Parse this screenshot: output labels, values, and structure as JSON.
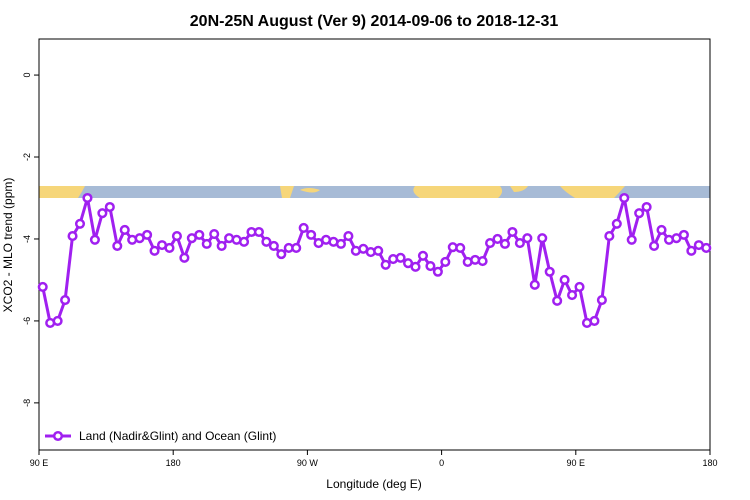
{
  "chart_data": {
    "type": "line",
    "title": "20N-25N August (Ver 9)   2014-09-06 to 2018-12-31",
    "xlabel": "Longitude (deg E)",
    "ylabel": "XCO2 - MLO trend (ppm)",
    "xlim": [
      90,
      540
    ],
    "xticks": [
      {
        "value": 90,
        "label": "90 E"
      },
      180,
      {
        "value": 270,
        "label": "90 W"
      },
      {
        "value": 360,
        "label": "0"
      },
      {
        "value": 450,
        "label": "90 E"
      },
      {
        "value": 540,
        "label": "180"
      }
    ],
    "ylim": [
      -9.15,
      0.88
    ],
    "yticks": [
      0,
      -2,
      -4,
      -6,
      -8
    ],
    "legend": "bottom-left",
    "series": [
      {
        "name": "Land (Nadir&Glint) and Ocean (Glint)",
        "color": "#a020f0",
        "x": [
          92.5,
          97.5,
          102.5,
          107.5,
          112.5,
          117.5,
          122.5,
          127.5,
          132.5,
          137.5,
          142.5,
          147.5,
          152.5,
          157.5,
          162.5,
          167.5,
          172.5,
          177.5,
          182.5,
          187.5,
          192.5,
          197.5,
          202.5,
          207.5,
          212.5,
          217.5,
          222.5,
          227.5,
          232.5,
          237.5,
          242.5,
          247.5,
          252.5,
          257.5,
          262.5,
          267.5,
          272.5,
          277.5,
          282.5,
          287.5,
          292.5,
          297.5,
          302.5,
          307.5,
          312.5,
          317.5,
          322.5,
          327.5,
          332.5,
          337.5,
          342.5,
          347.5,
          352.5,
          357.5,
          362.5,
          367.5,
          372.5,
          377.5,
          382.5,
          387.5,
          392.5,
          397.5,
          402.5,
          407.5,
          412.5,
          417.5,
          422.5,
          427.5,
          432.5,
          437.5,
          442.5,
          447.5,
          452.5,
          457.5,
          462.5,
          467.5,
          472.5,
          477.5,
          482.5,
          487.5,
          492.5,
          497.5,
          502.5,
          507.5,
          512.5,
          517.5,
          522.5,
          527.5,
          532.5,
          537.5
        ],
        "values": [
          -5.17,
          -6.05,
          -6.0,
          -5.49,
          -3.93,
          -3.63,
          -3.0,
          -4.02,
          -3.37,
          -3.22,
          -4.17,
          -3.78,
          -4.02,
          -3.98,
          -3.9,
          -4.29,
          -4.15,
          -4.22,
          -3.93,
          -4.46,
          -3.98,
          -3.9,
          -4.12,
          -3.88,
          -4.17,
          -3.98,
          -4.02,
          -4.07,
          -3.83,
          -3.83,
          -4.07,
          -4.17,
          -4.37,
          -4.22,
          -4.22,
          -3.73,
          -3.9,
          -4.1,
          -4.02,
          -4.07,
          -4.12,
          -3.93,
          -4.29,
          -4.24,
          -4.32,
          -4.29,
          -4.63,
          -4.49,
          -4.46,
          -4.59,
          -4.68,
          -4.41,
          -4.66,
          -4.8,
          -4.56,
          -4.2,
          -4.22,
          -4.56,
          -4.51,
          -4.54,
          -4.1,
          -4.0,
          -4.12,
          -3.83,
          -4.1,
          -3.98,
          -5.12,
          -3.98,
          -4.8,
          -5.51,
          -5.0,
          -5.37,
          -5.17,
          -6.05,
          -6.0,
          -5.49,
          -3.93,
          -3.63,
          -3.0,
          -4.02,
          -3.37,
          -3.22,
          -4.17,
          -3.78,
          -4.02,
          -3.98,
          -3.9,
          -4.29,
          -4.15,
          -4.22
        ]
      }
    ]
  }
}
